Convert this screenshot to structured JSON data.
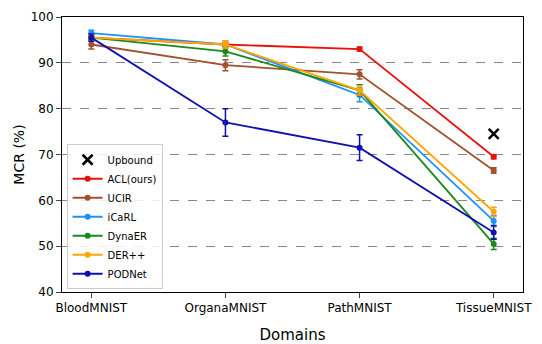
{
  "chart_data": {
    "type": "line",
    "x_label": "Domains",
    "y_label": "MCR (%)",
    "categories": [
      "BloodMNIST",
      "OrganaMNIST",
      "PathMNIST",
      "TissueMNIST"
    ],
    "ylim": [
      40,
      100
    ],
    "yticks": [
      40,
      50,
      60,
      70,
      80,
      90,
      100
    ],
    "grid": true,
    "legend": "lower left",
    "series": [
      {
        "name": "Upbound",
        "type": "scatter",
        "marker": "x",
        "color": "#000000",
        "values": [
          null,
          null,
          null,
          74.5
        ]
      },
      {
        "name": "ACL(ours)",
        "type": "line",
        "marker": "circle",
        "color": "#e8120c",
        "values": [
          95.5,
          94,
          93,
          69.5
        ],
        "errors": [
          0.4,
          0.4,
          0.4,
          0.4
        ]
      },
      {
        "name": "UCIR",
        "type": "line",
        "marker": "circle",
        "color": "#a0522d",
        "values": [
          94,
          89.5,
          87.5,
          66.5
        ],
        "errors": [
          1,
          1.2,
          1,
          0.6
        ]
      },
      {
        "name": "iCaRL",
        "type": "line",
        "marker": "circle",
        "color": "#1e90ff",
        "values": [
          96.5,
          94,
          83,
          55.5
        ],
        "errors": [
          0.6,
          0.8,
          1.5,
          1.2
        ]
      },
      {
        "name": "DynaER",
        "type": "line",
        "marker": "circle",
        "color": "#1a8a1a",
        "values": [
          95.5,
          92.5,
          84,
          50.5
        ],
        "errors": [
          0.5,
          1,
          1.2,
          1.2
        ]
      },
      {
        "name": "DER++",
        "type": "line",
        "marker": "circle",
        "color": "#ffa500",
        "values": [
          95.5,
          94,
          84,
          57.5
        ],
        "errors": [
          0.5,
          0.8,
          1,
          1
        ]
      },
      {
        "name": "PODNet",
        "type": "line",
        "marker": "circle",
        "color": "#1010b0",
        "values": [
          95.5,
          77,
          71.5,
          53
        ],
        "errors": [
          0.8,
          3,
          2.8,
          1.5
        ]
      }
    ]
  }
}
